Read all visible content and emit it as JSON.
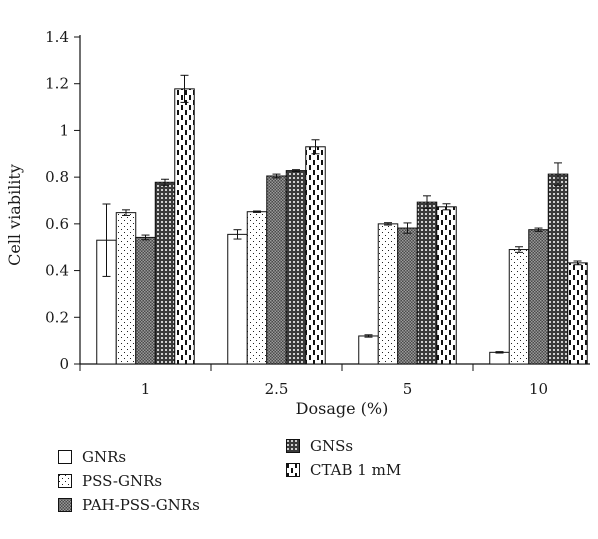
{
  "chart_data": {
    "type": "bar",
    "xlabel": "Dosage (%)",
    "ylabel": "Cell viability",
    "ylim": [
      0,
      1.4
    ],
    "yticks": [
      "0",
      "0.2",
      "0.4",
      "0.6",
      "0.8",
      "1",
      "1.2",
      "1.4"
    ],
    "categories": [
      "1",
      "2.5",
      "5",
      "10"
    ],
    "series": [
      {
        "name": "GNRs",
        "pattern": "blank",
        "values": [
          0.53,
          0.555,
          0.12,
          0.05
        ],
        "errors": [
          0.155,
          0.02,
          0.005,
          0.003
        ]
      },
      {
        "name": "PSS-GNRs",
        "pattern": "dots",
        "values": [
          0.648,
          0.652,
          0.6,
          0.49
        ],
        "errors": [
          0.012,
          0.003,
          0.005,
          0.012
        ]
      },
      {
        "name": "PAH-PSS-GNRs",
        "pattern": "dense-grid",
        "values": [
          0.542,
          0.805,
          0.582,
          0.575
        ],
        "errors": [
          0.01,
          0.008,
          0.022,
          0.007
        ]
      },
      {
        "name": "GNSs",
        "pattern": "diamond-grid",
        "values": [
          0.778,
          0.828,
          0.693,
          0.813
        ],
        "errors": [
          0.013,
          0.004,
          0.027,
          0.048
        ]
      },
      {
        "name": "CTAB 1 mM",
        "pattern": "dashes",
        "values": [
          1.178,
          0.93,
          0.673,
          0.433
        ],
        "errors": [
          0.058,
          0.03,
          0.013,
          0.008
        ]
      }
    ],
    "legend_position": "bottom-left",
    "grid": false
  }
}
